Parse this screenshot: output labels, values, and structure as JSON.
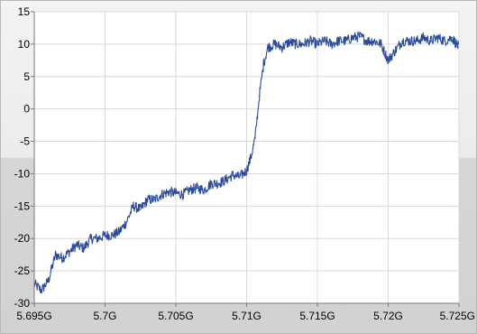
{
  "colors": {
    "background_top": "#f2f2f2",
    "background_bottom": "#d4d4d4",
    "plot_background": "#ffffff",
    "grid": "#d9d9d9",
    "series": "#2a4a9c",
    "axis": "#7a7a7a"
  },
  "chart_data": {
    "type": "line",
    "title": "",
    "xlabel": "",
    "ylabel": "",
    "xlim": [
      5.695,
      5.725
    ],
    "ylim": [
      -30,
      15
    ],
    "grid": true,
    "x_ticks": [
      5.695,
      5.7,
      5.705,
      5.71,
      5.715,
      5.72,
      5.725
    ],
    "x_tick_labels": [
      "5.695G",
      "5.7G",
      "5.705G",
      "5.71G",
      "5.715G",
      "5.72G",
      "5.725G"
    ],
    "y_ticks": [
      15,
      10,
      5,
      0,
      -5,
      -10,
      -15,
      -20,
      -25,
      -30
    ],
    "y_tick_labels": [
      "15",
      "10",
      "5",
      "0",
      "-5",
      "-10",
      "-15",
      "-20",
      "-25",
      "-30"
    ],
    "series": [
      {
        "color": "#2a4a9c",
        "x": [
          5.695,
          5.6955,
          5.696,
          5.6965,
          5.697,
          5.6975,
          5.698,
          5.6985,
          5.699,
          5.6995,
          5.7,
          5.7005,
          5.701,
          5.7015,
          5.702,
          5.7025,
          5.703,
          5.7035,
          5.704,
          5.7045,
          5.705,
          5.7055,
          5.706,
          5.7065,
          5.707,
          5.7075,
          5.708,
          5.7085,
          5.709,
          5.7095,
          5.71,
          5.7103,
          5.7106,
          5.7109,
          5.7112,
          5.7115,
          5.712,
          5.7125,
          5.713,
          5.7135,
          5.714,
          5.7145,
          5.715,
          5.7155,
          5.716,
          5.7165,
          5.717,
          5.7175,
          5.718,
          5.7185,
          5.719,
          5.7195,
          5.72,
          5.7205,
          5.721,
          5.7215,
          5.722,
          5.7225,
          5.723,
          5.7235,
          5.724,
          5.7245,
          5.725
        ],
        "y": [
          -27,
          -28,
          -26.5,
          -22.5,
          -23,
          -22,
          -21,
          -21.5,
          -20,
          -20,
          -19.5,
          -19.5,
          -19,
          -17.5,
          -15,
          -15.5,
          -14,
          -14,
          -13.2,
          -12.8,
          -13,
          -13.2,
          -12.5,
          -12.2,
          -12.5,
          -11.5,
          -11.5,
          -11,
          -10.2,
          -10.5,
          -9.5,
          -7.5,
          -4.5,
          2,
          7,
          9.5,
          10,
          9.5,
          10.3,
          10,
          10,
          10.5,
          10,
          10.5,
          10,
          10.5,
          10.5,
          11,
          11.2,
          10.5,
          10.5,
          10,
          7.5,
          9,
          10.5,
          10.5,
          10.5,
          11,
          10.5,
          11,
          10.5,
          11,
          9.5
        ]
      }
    ]
  }
}
